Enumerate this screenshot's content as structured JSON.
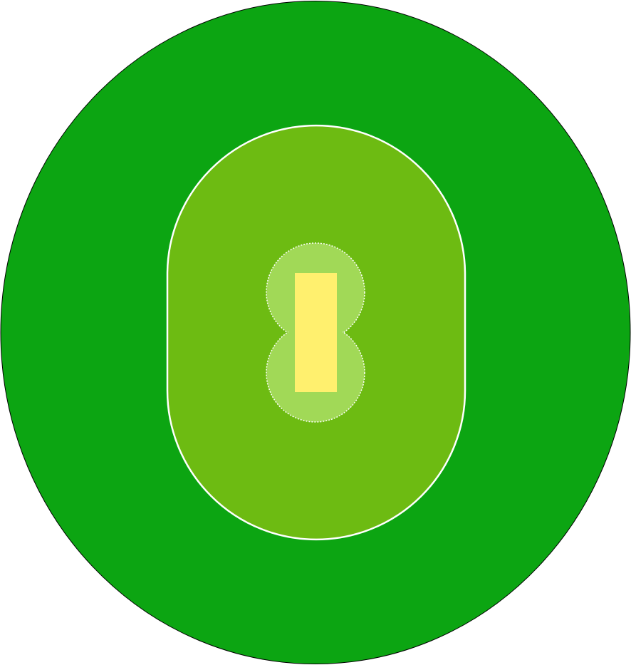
{
  "diagram": {
    "subject": "cricket-field",
    "regions": [
      {
        "id": "outfield",
        "shape": "ellipse"
      },
      {
        "id": "infield",
        "shape": "stadium"
      },
      {
        "id": "close-infield-top",
        "shape": "circle"
      },
      {
        "id": "close-infield-bottom",
        "shape": "circle"
      },
      {
        "id": "pitch",
        "shape": "rectangle"
      }
    ]
  },
  "colors": {
    "page_background": "#ffffff",
    "outfield_fill": "#0ca512",
    "outfield_stroke": "#000000",
    "infield_fill": "#6dbb12",
    "infield_stroke": "#ffffff",
    "close_circle_fill": "#a1d957",
    "close_circle_stroke": "#ffffff",
    "pitch_fill": "#fff06e"
  }
}
